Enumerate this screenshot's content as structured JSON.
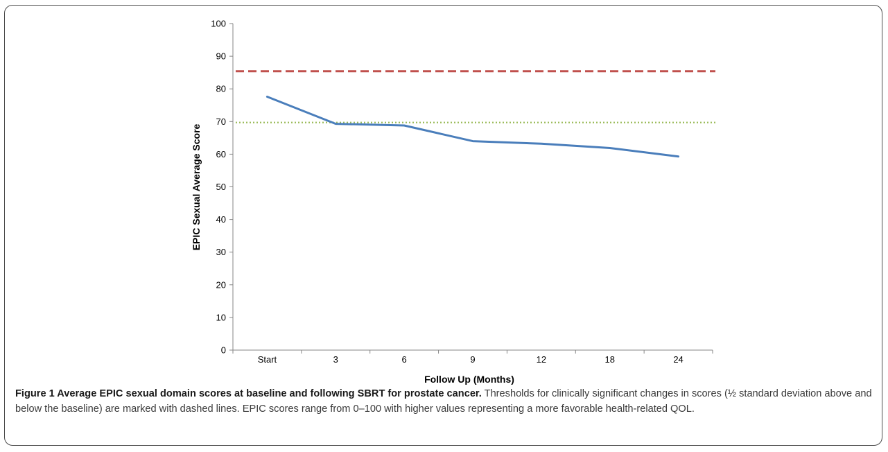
{
  "chart_data": {
    "type": "line",
    "categories": [
      "Start",
      "3",
      "6",
      "9",
      "12",
      "18",
      "24"
    ],
    "series": [
      {
        "values": [
          77.6,
          69.3,
          68.8,
          64.0,
          63.2,
          61.9,
          59.3
        ],
        "color": "#4a7ebb",
        "style": "solid"
      }
    ],
    "reference_lines": [
      {
        "y": 85.4,
        "color": "#c0504d",
        "style": "dashed"
      },
      {
        "y": 69.7,
        "color": "#9bbb59",
        "style": "dotted"
      }
    ],
    "xlabel": "Follow Up (Months)",
    "ylabel": "EPIC Sexual Average Score",
    "ylim": [
      0,
      100
    ],
    "yticks": [
      0,
      10,
      20,
      30,
      40,
      50,
      60,
      70,
      80,
      90,
      100
    ],
    "grid": false,
    "legend": "none"
  },
  "caption": {
    "label": "Figure 1 Average EPIC sexual domain scores at baseline and following SBRT for prostate cancer.",
    "text": " Thresholds for clinically significant changes in scores (½ standard deviation above and below the baseline) are marked with dashed lines. EPIC scores range from 0–100 with higher values representing a more favorable health-related QOL."
  }
}
